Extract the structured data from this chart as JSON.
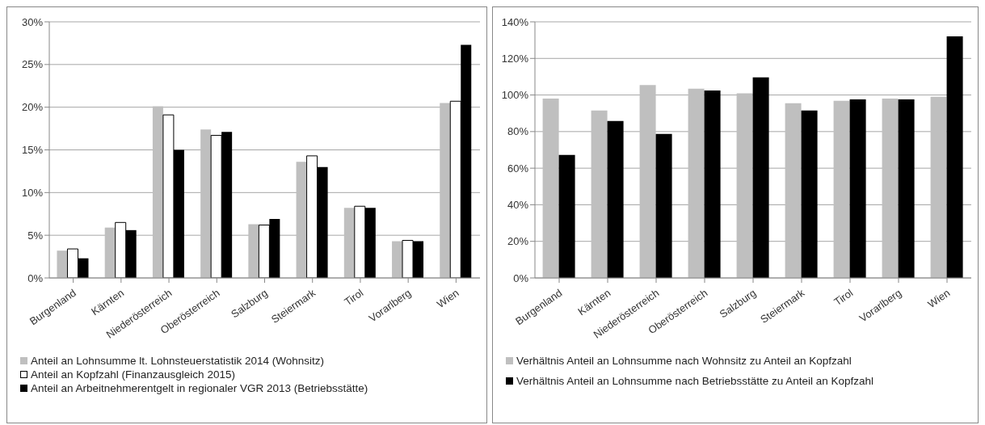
{
  "chart_data": [
    {
      "type": "bar",
      "categories": [
        "Burgenland",
        "Kärnten",
        "Niederösterreich",
        "Oberösterreich",
        "Salzburg",
        "Steiermark",
        "Tirol",
        "Vorarlberg",
        "Wien"
      ],
      "series": [
        {
          "name": "Anteil an Lohnsumme lt. Lohnsteuerstatistik 2014 (Wohnsitz)",
          "color": "#bfbfbf",
          "values": [
            3.2,
            5.9,
            20.1,
            17.4,
            6.3,
            13.6,
            8.2,
            4.3,
            20.5
          ]
        },
        {
          "name": "Anteil an Kopfzahl (Finanzausgleich 2015)",
          "color": "#ffffff",
          "values": [
            3.4,
            6.5,
            19.1,
            16.7,
            6.2,
            14.3,
            8.4,
            4.4,
            20.7
          ]
        },
        {
          "name": "Anteil an Arbeitnehmerentgelt in regionaler VGR 2013 (Betriebsstätte)",
          "color": "#000000",
          "values": [
            2.3,
            5.6,
            15.0,
            17.1,
            6.9,
            13.0,
            8.2,
            4.3,
            27.3
          ]
        }
      ],
      "ylim": [
        0,
        30
      ],
      "yticks": [
        {
          "value": 0,
          "label": "0%"
        },
        {
          "value": 5,
          "label": "5%"
        },
        {
          "value": 10,
          "label": "10%"
        },
        {
          "value": 15,
          "label": "15%"
        },
        {
          "value": 20,
          "label": "20%"
        },
        {
          "value": 25,
          "label": "25%"
        },
        {
          "value": 30,
          "label": "30%"
        }
      ],
      "grid": "y",
      "legend": "bottom"
    },
    {
      "type": "bar",
      "categories": [
        "Burgenland",
        "Kärnten",
        "Niederösterreich",
        "Oberösterreich",
        "Salzburg",
        "Steiermark",
        "Tirol",
        "Vorarlberg",
        "Wien"
      ],
      "series": [
        {
          "name": "Verhältnis Anteil an Lohnsumme nach Wohnsitz zu Anteil an Kopfzahl",
          "color": "#bfbfbf",
          "values": [
            98,
            91.5,
            105.4,
            103.5,
            100.9,
            95.5,
            96.8,
            98,
            99
          ]
        },
        {
          "name": "Verhältnis Anteil an Lohnsumme nach Betriebsstätte zu Anteil an Kopfzahl",
          "color": "#000000",
          "values": [
            67.2,
            85.8,
            78.7,
            102.5,
            109.6,
            91.5,
            97.6,
            97.6,
            132
          ]
        }
      ],
      "ylim": [
        0,
        140
      ],
      "yticks": [
        {
          "value": 0,
          "label": "0%"
        },
        {
          "value": 20,
          "label": "20%"
        },
        {
          "value": 40,
          "label": "40%"
        },
        {
          "value": 60,
          "label": "60%"
        },
        {
          "value": 80,
          "label": "80%"
        },
        {
          "value": 100,
          "label": "100%"
        },
        {
          "value": 120,
          "label": "120%"
        },
        {
          "value": 140,
          "label": "140%"
        }
      ],
      "grid": "y",
      "legend": "bottom"
    }
  ]
}
